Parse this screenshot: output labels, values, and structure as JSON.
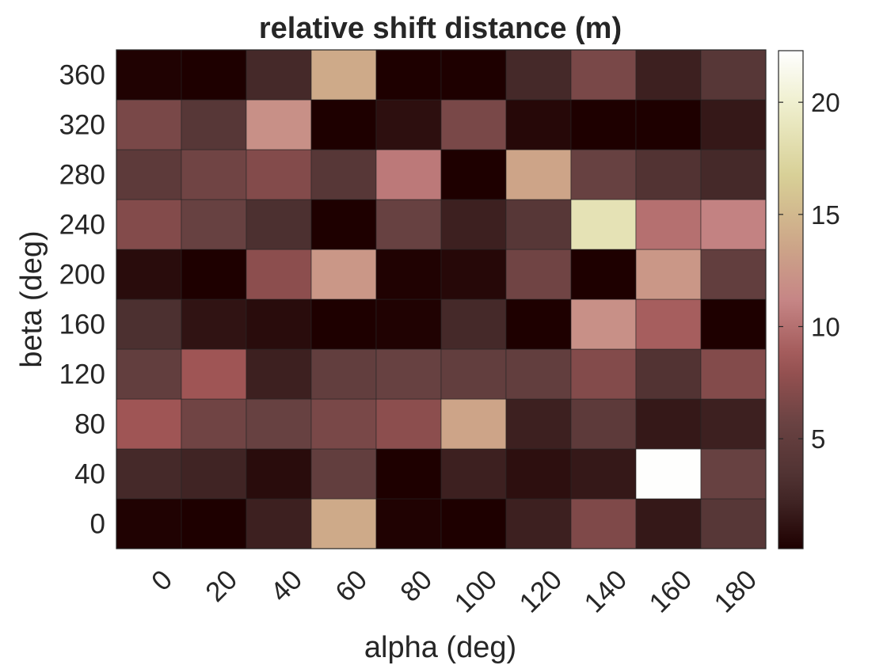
{
  "chart_data": {
    "type": "heatmap",
    "title": "relative shift distance (m)",
    "xlabel": "alpha (deg)",
    "ylabel": "beta (deg)",
    "x_categories": [
      "0",
      "20",
      "40",
      "60",
      "80",
      "100",
      "120",
      "140",
      "160",
      "180"
    ],
    "y_categories": [
      "0",
      "40",
      "80",
      "120",
      "160",
      "200",
      "240",
      "280",
      "320",
      "360"
    ],
    "z": [
      [
        0.2,
        0.1,
        2.0,
        14.0,
        0.2,
        0.1,
        2.0,
        6.8,
        1.5,
        4.0
      ],
      [
        2.5,
        2.2,
        0.8,
        5.0,
        0.1,
        2.0,
        1.0,
        1.5,
        22.2,
        5.5
      ],
      [
        8.5,
        6.0,
        5.5,
        6.5,
        7.5,
        13.5,
        2.0,
        4.5,
        1.5,
        2.0
      ],
      [
        5.0,
        8.5,
        2.0,
        5.0,
        5.5,
        5.0,
        5.0,
        7.0,
        3.5,
        7.0
      ],
      [
        3.0,
        1.2,
        0.8,
        0.1,
        0.2,
        2.5,
        0.1,
        12.0,
        9.0,
        0.1
      ],
      [
        0.8,
        0.1,
        7.5,
        12.5,
        0.2,
        0.6,
        6.0,
        0.1,
        12.5,
        5.0
      ],
      [
        7.0,
        5.5,
        3.0,
        0.1,
        5.5,
        2.0,
        4.0,
        18.5,
        10.0,
        11.0
      ],
      [
        4.5,
        6.0,
        7.0,
        4.0,
        10.5,
        0.1,
        13.5,
        5.5,
        3.5,
        2.5
      ],
      [
        6.5,
        4.0,
        12.0,
        0.1,
        1.0,
        6.5,
        0.6,
        0.1,
        0.1,
        1.5
      ],
      [
        0.2,
        0.1,
        2.5,
        14.0,
        0.1,
        0.1,
        2.5,
        6.5,
        2.0,
        4.0
      ]
    ],
    "colorbar": {
      "colormap": "pink",
      "range": [
        0.1,
        22.3
      ],
      "ticks": [
        "5",
        "10",
        "15",
        "20"
      ]
    },
    "legend": "colorbar-right",
    "grid": false
  }
}
